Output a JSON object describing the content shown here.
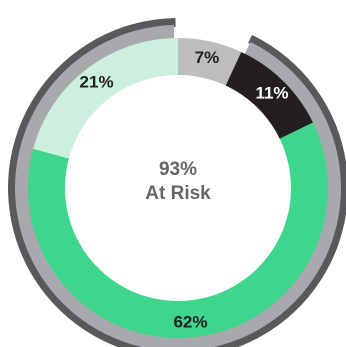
{
  "chart_data": {
    "type": "pie",
    "style": "donut",
    "center_label": {
      "value": "93%",
      "text": "At Risk"
    },
    "slices": [
      {
        "label": "7%",
        "value": 7,
        "color": "#bdbdbf",
        "label_color": "#222222"
      },
      {
        "label": "11%",
        "value": 11,
        "color": "#231f20",
        "label_color": "#ffffff"
      },
      {
        "label": "62%",
        "value": 62,
        "color": "#3dd68c",
        "label_color": "#222222"
      },
      {
        "label": "21%",
        "value": 21,
        "color": "#cdf0de",
        "label_color": "#222222"
      }
    ],
    "outer_bracket": {
      "color": "#58595b",
      "covers_slices": [
        1,
        2,
        3
      ],
      "base_color": "#a7a9ac"
    }
  }
}
